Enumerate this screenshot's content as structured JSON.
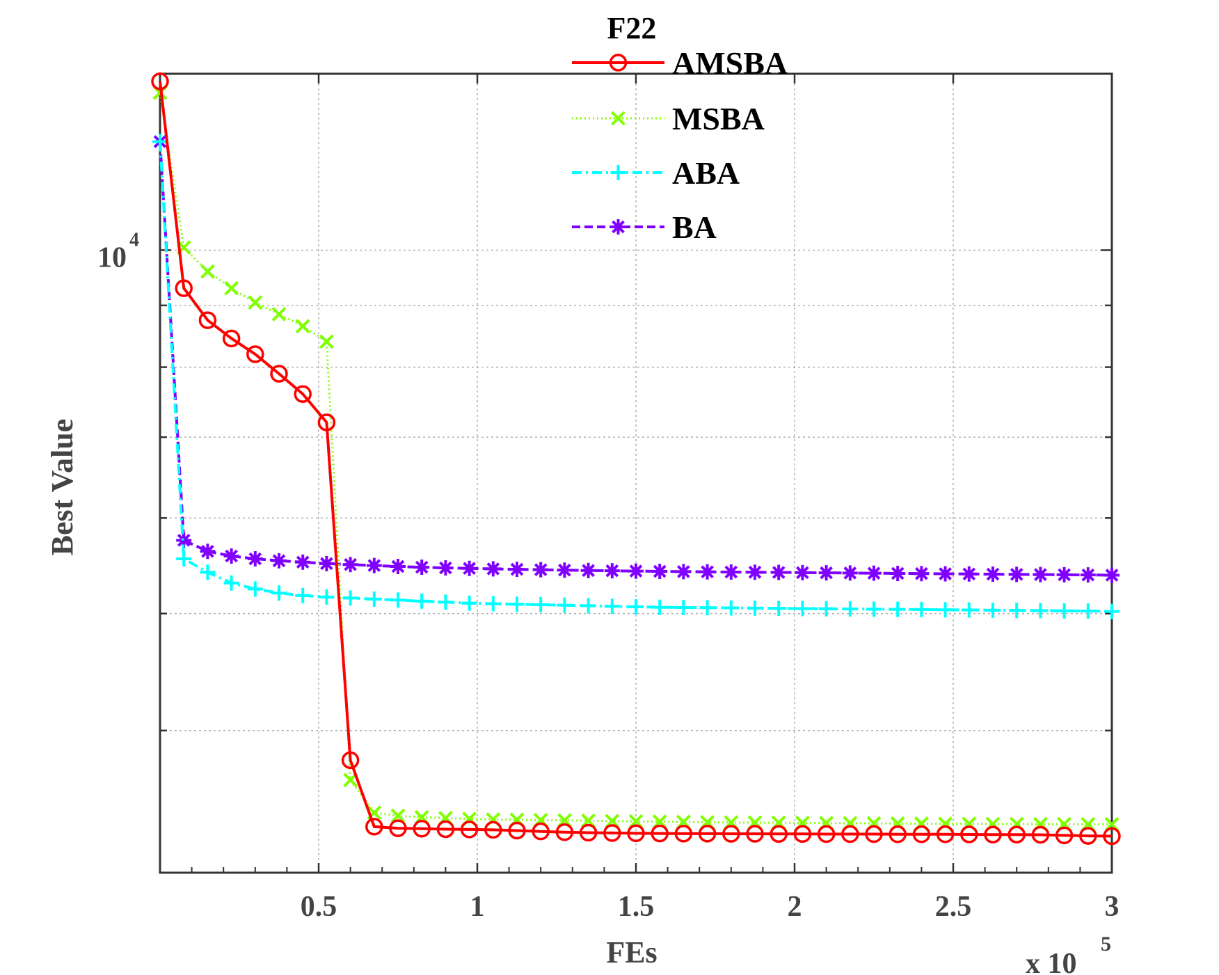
{
  "chart_data": {
    "type": "line",
    "title": "F22",
    "xlabel": "FEs",
    "ylabel": "Best Value",
    "x_multiplier_label": "x 10",
    "x_multiplier_exponent": "5",
    "xlim": [
      0,
      3
    ],
    "x_ticks": [
      "0.5",
      "1",
      "1.5",
      "2",
      "2.5",
      "3"
    ],
    "y_scale": "log",
    "ylim": [
      3050,
      14000
    ],
    "y_tick_labels": [
      {
        "base": "10",
        "exp": "4"
      }
    ],
    "grid": true,
    "legend_position": "top",
    "x": [
      0.0,
      0.075,
      0.15,
      0.225,
      0.3,
      0.375,
      0.45,
      0.525,
      0.6,
      0.675,
      0.75,
      0.825,
      0.9,
      0.975,
      1.05,
      1.125,
      1.2,
      1.275,
      1.35,
      1.425,
      1.5,
      1.575,
      1.65,
      1.725,
      1.8,
      1.875,
      1.95,
      2.025,
      2.1,
      2.175,
      2.25,
      2.325,
      2.4,
      2.475,
      2.55,
      2.625,
      2.7,
      2.775,
      2.85,
      2.925,
      3.0
    ],
    "series": [
      {
        "name": "AMSBA",
        "color": "#ff0000",
        "marker": "circle",
        "line_style": "solid",
        "values": [
          13800,
          9300,
          8750,
          8450,
          8200,
          7900,
          7600,
          7200,
          3780,
          3330,
          3320,
          3317,
          3314,
          3312,
          3310,
          3305,
          3300,
          3295,
          3292,
          3290,
          3288,
          3287,
          3286,
          3286,
          3285,
          3285,
          3284,
          3284,
          3283,
          3283,
          3283,
          3282,
          3282,
          3282,
          3281,
          3280,
          3280,
          3279,
          3275,
          3272,
          3270
        ]
      },
      {
        "name": "MSBA",
        "color": "#7fff00",
        "marker": "x",
        "line_style": "dotted",
        "values": [
          13500,
          10050,
          9600,
          9300,
          9050,
          8850,
          8650,
          8400,
          3640,
          3420,
          3400,
          3390,
          3385,
          3380,
          3376,
          3374,
          3372,
          3370,
          3368,
          3366,
          3364,
          3362,
          3360,
          3358,
          3357,
          3356,
          3355,
          3354,
          3353,
          3352,
          3351,
          3350,
          3349,
          3348,
          3348,
          3347,
          3347,
          3346,
          3346,
          3345,
          3345
        ]
      },
      {
        "name": "ABA",
        "color": "#00ffff",
        "marker": "plus",
        "line_style": "dashdot",
        "values": [
          12300,
          5550,
          5410,
          5300,
          5240,
          5200,
          5175,
          5160,
          5150,
          5140,
          5130,
          5120,
          5110,
          5100,
          5095,
          5090,
          5085,
          5080,
          5075,
          5070,
          5065,
          5060,
          5058,
          5056,
          5054,
          5052,
          5050,
          5048,
          5046,
          5044,
          5042,
          5040,
          5038,
          5036,
          5034,
          5032,
          5030,
          5028,
          5026,
          5024,
          5020
        ]
      },
      {
        "name": "BA",
        "color": "#7f00ff",
        "marker": "asterisk",
        "line_style": "dashed",
        "values": [
          12300,
          5750,
          5630,
          5580,
          5550,
          5530,
          5515,
          5500,
          5490,
          5480,
          5470,
          5462,
          5455,
          5450,
          5445,
          5440,
          5436,
          5432,
          5428,
          5425,
          5422,
          5419,
          5416,
          5414,
          5412,
          5410,
          5408,
          5406,
          5404,
          5402,
          5400,
          5398,
          5396,
          5394,
          5392,
          5390,
          5388,
          5386,
          5384,
          5382,
          5380
        ]
      }
    ]
  }
}
